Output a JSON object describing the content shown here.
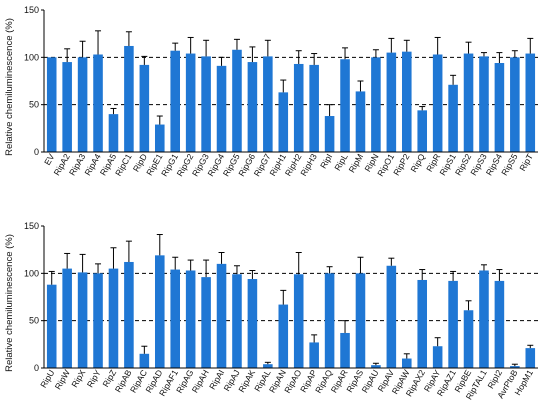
{
  "chart_data": [
    {
      "type": "bar",
      "ylabel": "Relative chemiluminescence (%)",
      "ylim": [
        0,
        150
      ],
      "yticks": [
        0,
        50,
        100,
        150
      ],
      "reference_lines": [
        50,
        100
      ],
      "bar_color": "#1f77d4",
      "categories": [
        "EV",
        "RipA2",
        "RipA3",
        "RipA4",
        "RipA5",
        "RipC1",
        "RipD",
        "RipE1",
        "RipG1",
        "RipG2",
        "RipG3",
        "RipG4",
        "RipG5",
        "RipG6",
        "RipG7",
        "RipH1",
        "RipH2",
        "RipH3",
        "RipI",
        "RipL",
        "RipM",
        "RipN",
        "RipO1",
        "RipP2",
        "RipQ",
        "RipR",
        "RipS1",
        "RipS2",
        "RipS3",
        "RipS4",
        "RipS5",
        "RipT"
      ],
      "values": [
        100,
        95,
        100,
        103,
        40,
        112,
        92,
        29,
        107,
        104,
        101,
        91,
        108,
        95,
        101,
        63,
        93,
        92,
        38,
        98,
        64,
        100,
        105,
        106,
        44,
        103,
        71,
        104,
        101,
        94,
        100,
        104
      ],
      "errors": [
        0,
        14,
        17,
        25,
        6,
        15,
        9,
        9,
        8,
        17,
        17,
        9,
        11,
        16,
        17,
        13,
        14,
        12,
        12,
        12,
        11,
        8,
        15,
        12,
        4,
        18,
        10,
        12,
        4,
        11,
        7,
        16
      ]
    },
    {
      "type": "bar",
      "ylabel": "Relative chemiluminescence (%)",
      "ylim": [
        0,
        150
      ],
      "yticks": [
        0,
        50,
        100,
        150
      ],
      "reference_lines": [
        50,
        100
      ],
      "bar_color": "#1f77d4",
      "categories": [
        "RipU",
        "RipW",
        "RipX",
        "RipY",
        "RipZ",
        "RipAB",
        "RipAC",
        "RipAD",
        "RipAF1",
        "RipAG",
        "RipAH",
        "RipAI",
        "RipAJ",
        "RipAK",
        "RipAL",
        "RipAN",
        "RipAO",
        "RipAP",
        "RipAQ",
        "RipAR",
        "RipAS",
        "RipAU",
        "RipAV",
        "RipAW",
        "RipAX2",
        "RipAY",
        "RipAZ1",
        "RipBE",
        "RipTAL1",
        "RipI2",
        "AvrPtoB",
        "HopM1"
      ],
      "values": [
        88,
        105,
        101,
        100,
        105,
        112,
        15,
        119,
        104,
        103,
        96,
        110,
        99,
        94,
        4,
        67,
        99,
        27,
        100,
        37,
        100,
        3,
        108,
        10,
        93,
        23,
        92,
        61,
        103,
        92,
        2,
        21
      ],
      "errors": [
        14,
        16,
        19,
        10,
        22,
        22,
        8,
        22,
        13,
        11,
        18,
        12,
        9,
        9,
        2,
        15,
        23,
        8,
        7,
        13,
        17,
        2,
        8,
        5,
        11,
        9,
        10,
        10,
        6,
        12,
        2,
        3
      ]
    }
  ]
}
